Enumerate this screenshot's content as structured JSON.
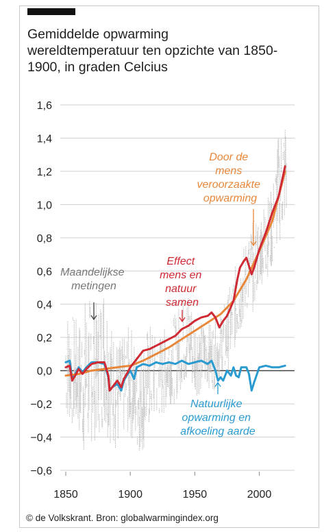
{
  "header": {
    "title_line1": "Gemiddelde opwarming",
    "title_line2": "wereldtemperatuur ten opzichte van 1850-",
    "title_line3": "1900, in graden Celcius"
  },
  "footer": {
    "source": "© de Volkskrant. Bron: globalwarmingindex.org"
  },
  "colors": {
    "measurements": "#b8b8b8",
    "human": "#e8873a",
    "combined": "#cf2a33",
    "natural": "#2a9bd0",
    "grid": "#cfcfcf",
    "zero_line": "#444444",
    "arrow_grey": "#444444"
  },
  "chart_data": {
    "type": "line",
    "xlim": [
      1850,
      2022
    ],
    "ylim": [
      -0.6,
      1.6
    ],
    "x_ticks": [
      1850,
      1900,
      1950,
      2000
    ],
    "y_ticks": [
      -0.6,
      -0.4,
      -0.2,
      0.0,
      0.2,
      0.4,
      0.6,
      0.8,
      1.0,
      1.2,
      1.4,
      1.6
    ],
    "y_tick_labels": [
      "−0,6",
      "−0,4",
      "−0,2",
      "0,0",
      "0,2",
      "0,4",
      "0,6",
      "0,8",
      "1,0",
      "1,2",
      "1,4",
      "1,6"
    ],
    "x_tick_labels": [
      "1850",
      "1900",
      "1950",
      "2000"
    ],
    "grid": true,
    "annotations": {
      "measurements": [
        "Maandelijkse",
        "metingen"
      ],
      "human": [
        "Door de",
        "mens",
        "veroorzaakte",
        "opwarming"
      ],
      "combined": [
        "Effect",
        "mens en",
        "natuur",
        "samen"
      ],
      "natural": [
        "Natuurlijke",
        "opwarming en",
        "afkoeling aarde"
      ]
    },
    "measurement_envelope": {
      "x": [
        1850,
        1855,
        1860,
        1865,
        1870,
        1875,
        1880,
        1885,
        1890,
        1895,
        1900,
        1905,
        1910,
        1915,
        1920,
        1925,
        1930,
        1935,
        1940,
        1945,
        1950,
        1955,
        1960,
        1965,
        1970,
        1975,
        1980,
        1985,
        1990,
        1995,
        2000,
        2005,
        2010,
        2015,
        2020
      ],
      "low": [
        -0.3,
        -0.35,
        -0.4,
        -0.55,
        -0.45,
        -0.4,
        -0.35,
        -0.45,
        -0.5,
        -0.4,
        -0.4,
        -0.5,
        -0.5,
        -0.35,
        -0.3,
        -0.3,
        -0.2,
        -0.2,
        -0.1,
        -0.1,
        -0.15,
        -0.15,
        -0.1,
        -0.12,
        -0.05,
        -0.05,
        0.1,
        0.2,
        0.35,
        0.35,
        0.5,
        0.55,
        0.6,
        0.75,
        0.85
      ],
      "high": [
        0.4,
        0.35,
        0.3,
        0.45,
        0.45,
        0.4,
        0.6,
        0.3,
        0.2,
        0.2,
        0.3,
        0.15,
        0.2,
        0.3,
        0.2,
        0.25,
        0.3,
        0.35,
        0.45,
        0.5,
        0.35,
        0.3,
        0.3,
        0.3,
        0.35,
        0.45,
        0.6,
        0.7,
        0.8,
        0.9,
        0.95,
        1.05,
        1.1,
        1.45,
        1.55
      ]
    },
    "series": [
      {
        "name": "Door de mens veroorzaakte opwarming",
        "key": "human",
        "x": [
          1850,
          1860,
          1870,
          1880,
          1890,
          1900,
          1910,
          1920,
          1930,
          1940,
          1950,
          1960,
          1970,
          1980,
          1990,
          2000,
          2010,
          2020
        ],
        "y": [
          -0.03,
          -0.02,
          0.0,
          0.01,
          0.02,
          0.03,
          0.06,
          0.1,
          0.14,
          0.19,
          0.24,
          0.29,
          0.34,
          0.42,
          0.55,
          0.72,
          0.9,
          1.2
        ]
      },
      {
        "name": "Effect mens en natuur samen",
        "key": "combined",
        "x": [
          1850,
          1853,
          1855,
          1858,
          1860,
          1863,
          1866,
          1870,
          1875,
          1880,
          1883,
          1884,
          1886,
          1890,
          1893,
          1895,
          1898,
          1900,
          1905,
          1910,
          1915,
          1920,
          1925,
          1930,
          1935,
          1940,
          1945,
          1950,
          1955,
          1960,
          1963,
          1966,
          1969,
          1972,
          1975,
          1980,
          1983,
          1985,
          1988,
          1990,
          1992,
          1994,
          1996,
          2000,
          2005,
          2010,
          2015,
          2020
        ],
        "y": [
          0.02,
          0.03,
          -0.06,
          -0.02,
          0.01,
          -0.02,
          0.01,
          0.04,
          0.05,
          0.05,
          -0.03,
          -0.12,
          -0.1,
          -0.06,
          -0.1,
          -0.05,
          -0.01,
          0.02,
          0.07,
          0.12,
          0.13,
          0.15,
          0.17,
          0.19,
          0.21,
          0.25,
          0.27,
          0.3,
          0.32,
          0.33,
          0.35,
          0.32,
          0.26,
          0.3,
          0.33,
          0.42,
          0.55,
          0.62,
          0.66,
          0.68,
          0.63,
          0.58,
          0.62,
          0.73,
          0.83,
          0.95,
          1.05,
          1.23
        ]
      },
      {
        "name": "Natuurlijke opwarming en afkoeling aarde",
        "key": "natural",
        "x": [
          1850,
          1853,
          1855,
          1858,
          1860,
          1863,
          1866,
          1870,
          1875,
          1880,
          1883,
          1884,
          1886,
          1890,
          1893,
          1895,
          1898,
          1900,
          1903,
          1905,
          1910,
          1915,
          1920,
          1925,
          1930,
          1935,
          1940,
          1945,
          1950,
          1955,
          1960,
          1963,
          1966,
          1968,
          1970,
          1972,
          1975,
          1978,
          1980,
          1982,
          1984,
          1986,
          1990,
          1992,
          1994,
          1996,
          2000,
          2005,
          2010,
          2015,
          2020
        ],
        "y": [
          0.05,
          0.06,
          -0.05,
          -0.01,
          0.02,
          -0.01,
          0.02,
          0.05,
          0.05,
          0.04,
          -0.04,
          -0.12,
          -0.1,
          -0.08,
          -0.12,
          -0.06,
          -0.02,
          0.0,
          -0.05,
          0.02,
          0.04,
          0.03,
          0.05,
          0.04,
          0.05,
          0.04,
          0.06,
          0.04,
          0.05,
          0.06,
          0.04,
          0.06,
          0.0,
          -0.06,
          -0.04,
          -0.06,
          0.0,
          -0.03,
          0.02,
          -0.03,
          -0.04,
          0.02,
          0.02,
          -0.02,
          -0.12,
          -0.07,
          0.02,
          0.03,
          0.02,
          0.02,
          0.03
        ]
      }
    ]
  }
}
